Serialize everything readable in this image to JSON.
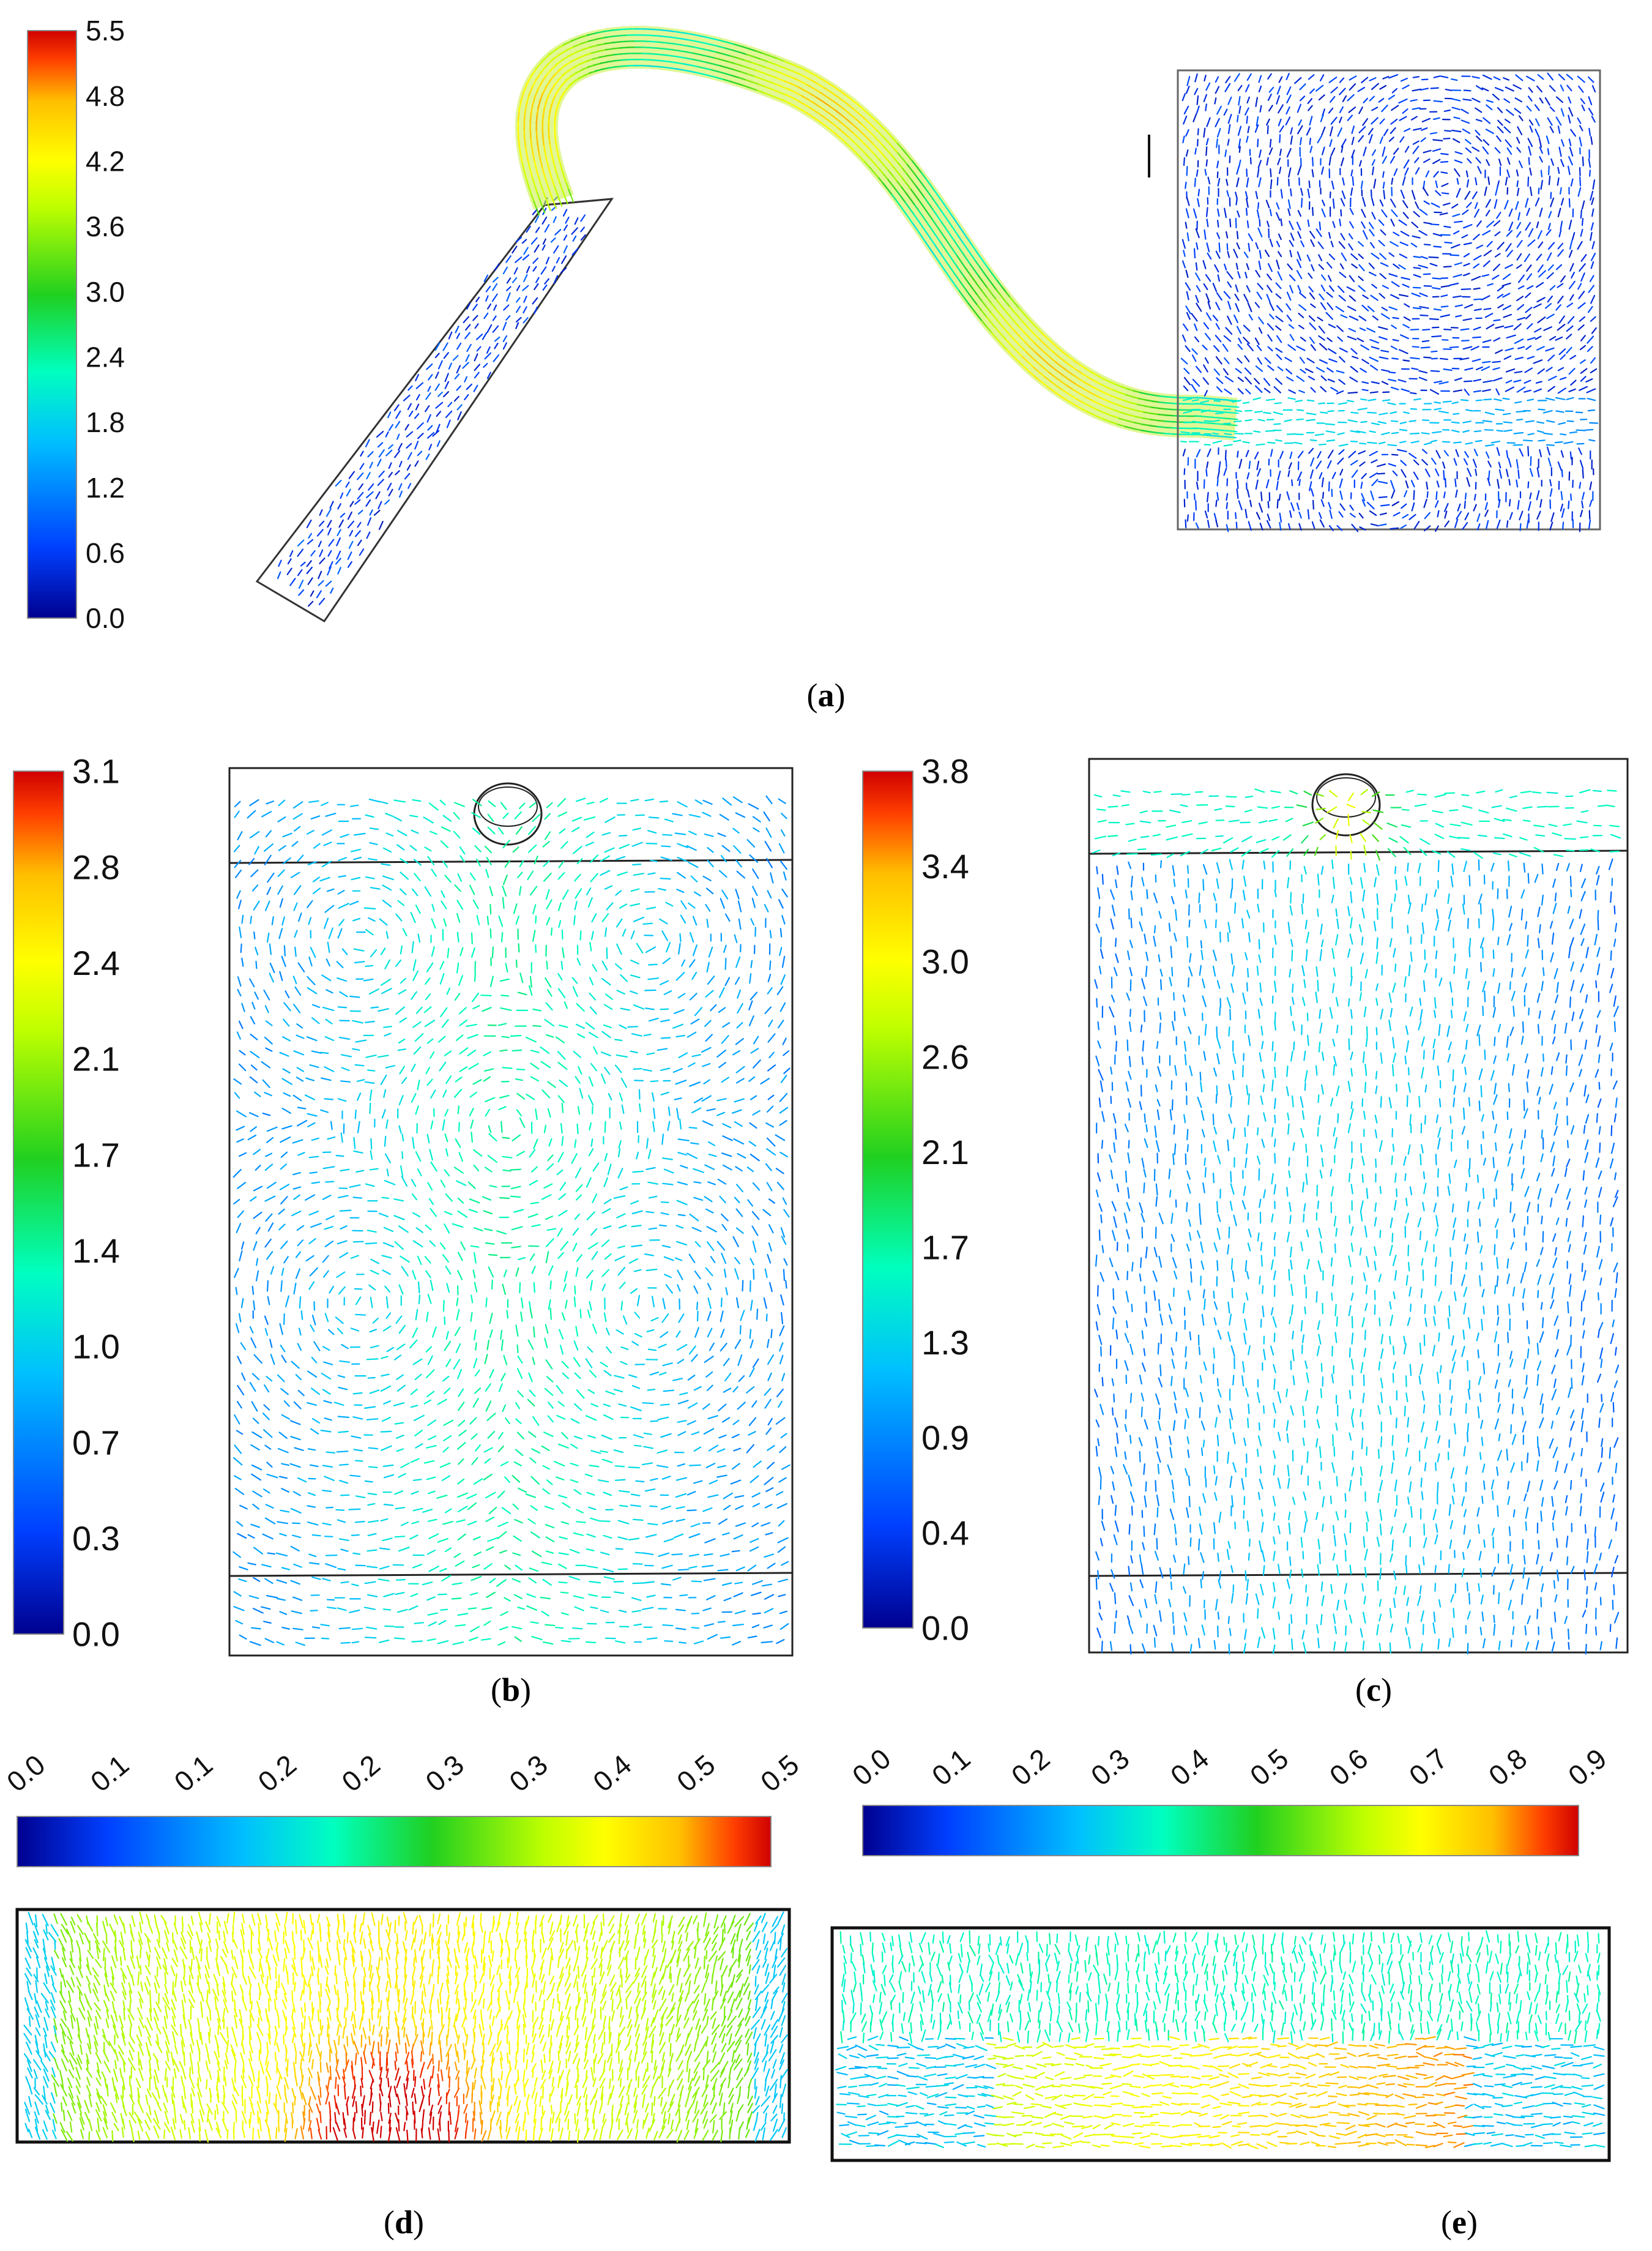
{
  "colors": {
    "jet": [
      "#00008f",
      "#0040ff",
      "#00bfff",
      "#00ffbf",
      "#20d020",
      "#bfff00",
      "#ffff00",
      "#ffbf00",
      "#ff4000",
      "#d00000"
    ],
    "outline": "#333333"
  },
  "panels": [
    {
      "id": "a",
      "label": "a",
      "colorbar": {
        "orientation": "vertical",
        "ticks": [
          "0.0",
          "0.6",
          "1.2",
          "1.8",
          "2.4",
          "3.0",
          "3.6",
          "4.2",
          "4.8",
          "5.5"
        ]
      }
    },
    {
      "id": "b",
      "label": "b",
      "colorbar": {
        "orientation": "vertical",
        "ticks": [
          "0.0",
          "0.3",
          "0.7",
          "1.0",
          "1.4",
          "1.7",
          "2.1",
          "2.4",
          "2.8",
          "3.1"
        ]
      }
    },
    {
      "id": "c",
      "label": "c",
      "colorbar": {
        "orientation": "vertical",
        "ticks": [
          "0.0",
          "0.4",
          "0.9",
          "1.3",
          "1.7",
          "2.1",
          "2.6",
          "3.0",
          "3.4",
          "3.8"
        ]
      }
    },
    {
      "id": "d",
      "label": "d",
      "colorbar": {
        "orientation": "horizontal",
        "ticks": [
          "0.0",
          "0.1",
          "0.1",
          "0.2",
          "0.2",
          "0.3",
          "0.3",
          "0.4",
          "0.5",
          "0.5"
        ]
      }
    },
    {
      "id": "e",
      "label": "e",
      "colorbar": {
        "orientation": "horizontal",
        "ticks": [
          "0.0",
          "0.1",
          "0.2",
          "0.3",
          "0.4",
          "0.5",
          "0.6",
          "0.7",
          "0.8",
          "0.9"
        ]
      }
    }
  ]
}
